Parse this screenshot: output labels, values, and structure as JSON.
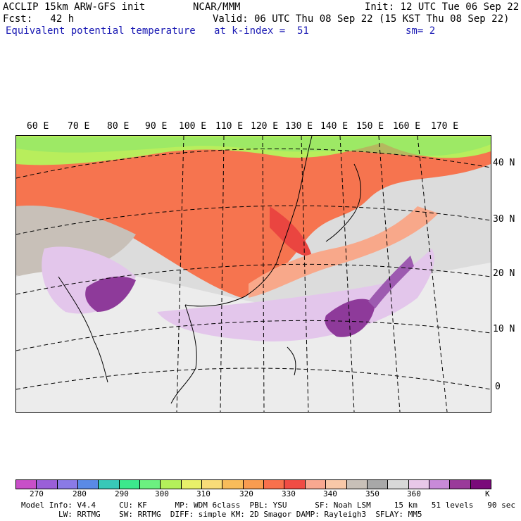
{
  "header": {
    "line1_left": "ACCLIP 15km ARW-GFS init",
    "line1_mid": "NCAR/MMM",
    "line1_right": "Init: 12 UTC Tue 06 Sep 22",
    "line2_left": "Fcst:   42 h",
    "line2_right": "Valid: 06 UTC Thu 08 Sep 22 (15 KST Thu 08 Sep 22)",
    "line3_left": "Equivalent potential temperature",
    "line3_mid": "at k-index =  51",
    "line3_right": "sm= 2"
  },
  "lon_labels": [
    "60 E",
    "70 E",
    "80 E",
    "90 E",
    "100 E",
    "110 E",
    "120 E",
    "130 E",
    "140 E",
    "150 E",
    "160 E",
    "170 E"
  ],
  "lat_labels": [
    "40 N",
    "30 N",
    "20 N",
    "10 N",
    "0"
  ],
  "colorbar": {
    "colors": [
      "#c84fc8",
      "#9a5fd8",
      "#8a7ae6",
      "#5a8ae6",
      "#38c8b8",
      "#3ce88c",
      "#6cf080",
      "#b4f05a",
      "#e8f06a",
      "#f8dc78",
      "#f8bc5a",
      "#f89c50",
      "#f8704c",
      "#f04c44",
      "#f8a890",
      "#f8c8a8",
      "#c8c0b8",
      "#a8a8a8",
      "#d8d8d8",
      "#e8c8e8",
      "#c88ad8",
      "#9a3a9a",
      "#7a0a7a"
    ],
    "tick_labels": [
      "270",
      "280",
      "290",
      "300",
      "310",
      "320",
      "330",
      "340",
      "350",
      "360",
      "K"
    ]
  },
  "footer": {
    "line1": "Model Info: V4.4     CU: KF      MP: WDM 6class  PBL: YSU      SF: Noah LSM     15 km   51 levels   90 sec",
    "line2": "        LW: RRTMG    SW: RRTMG  DIFF: simple KM: 2D Smagor DAMP: Rayleigh3  SFLAY: MM5"
  }
}
